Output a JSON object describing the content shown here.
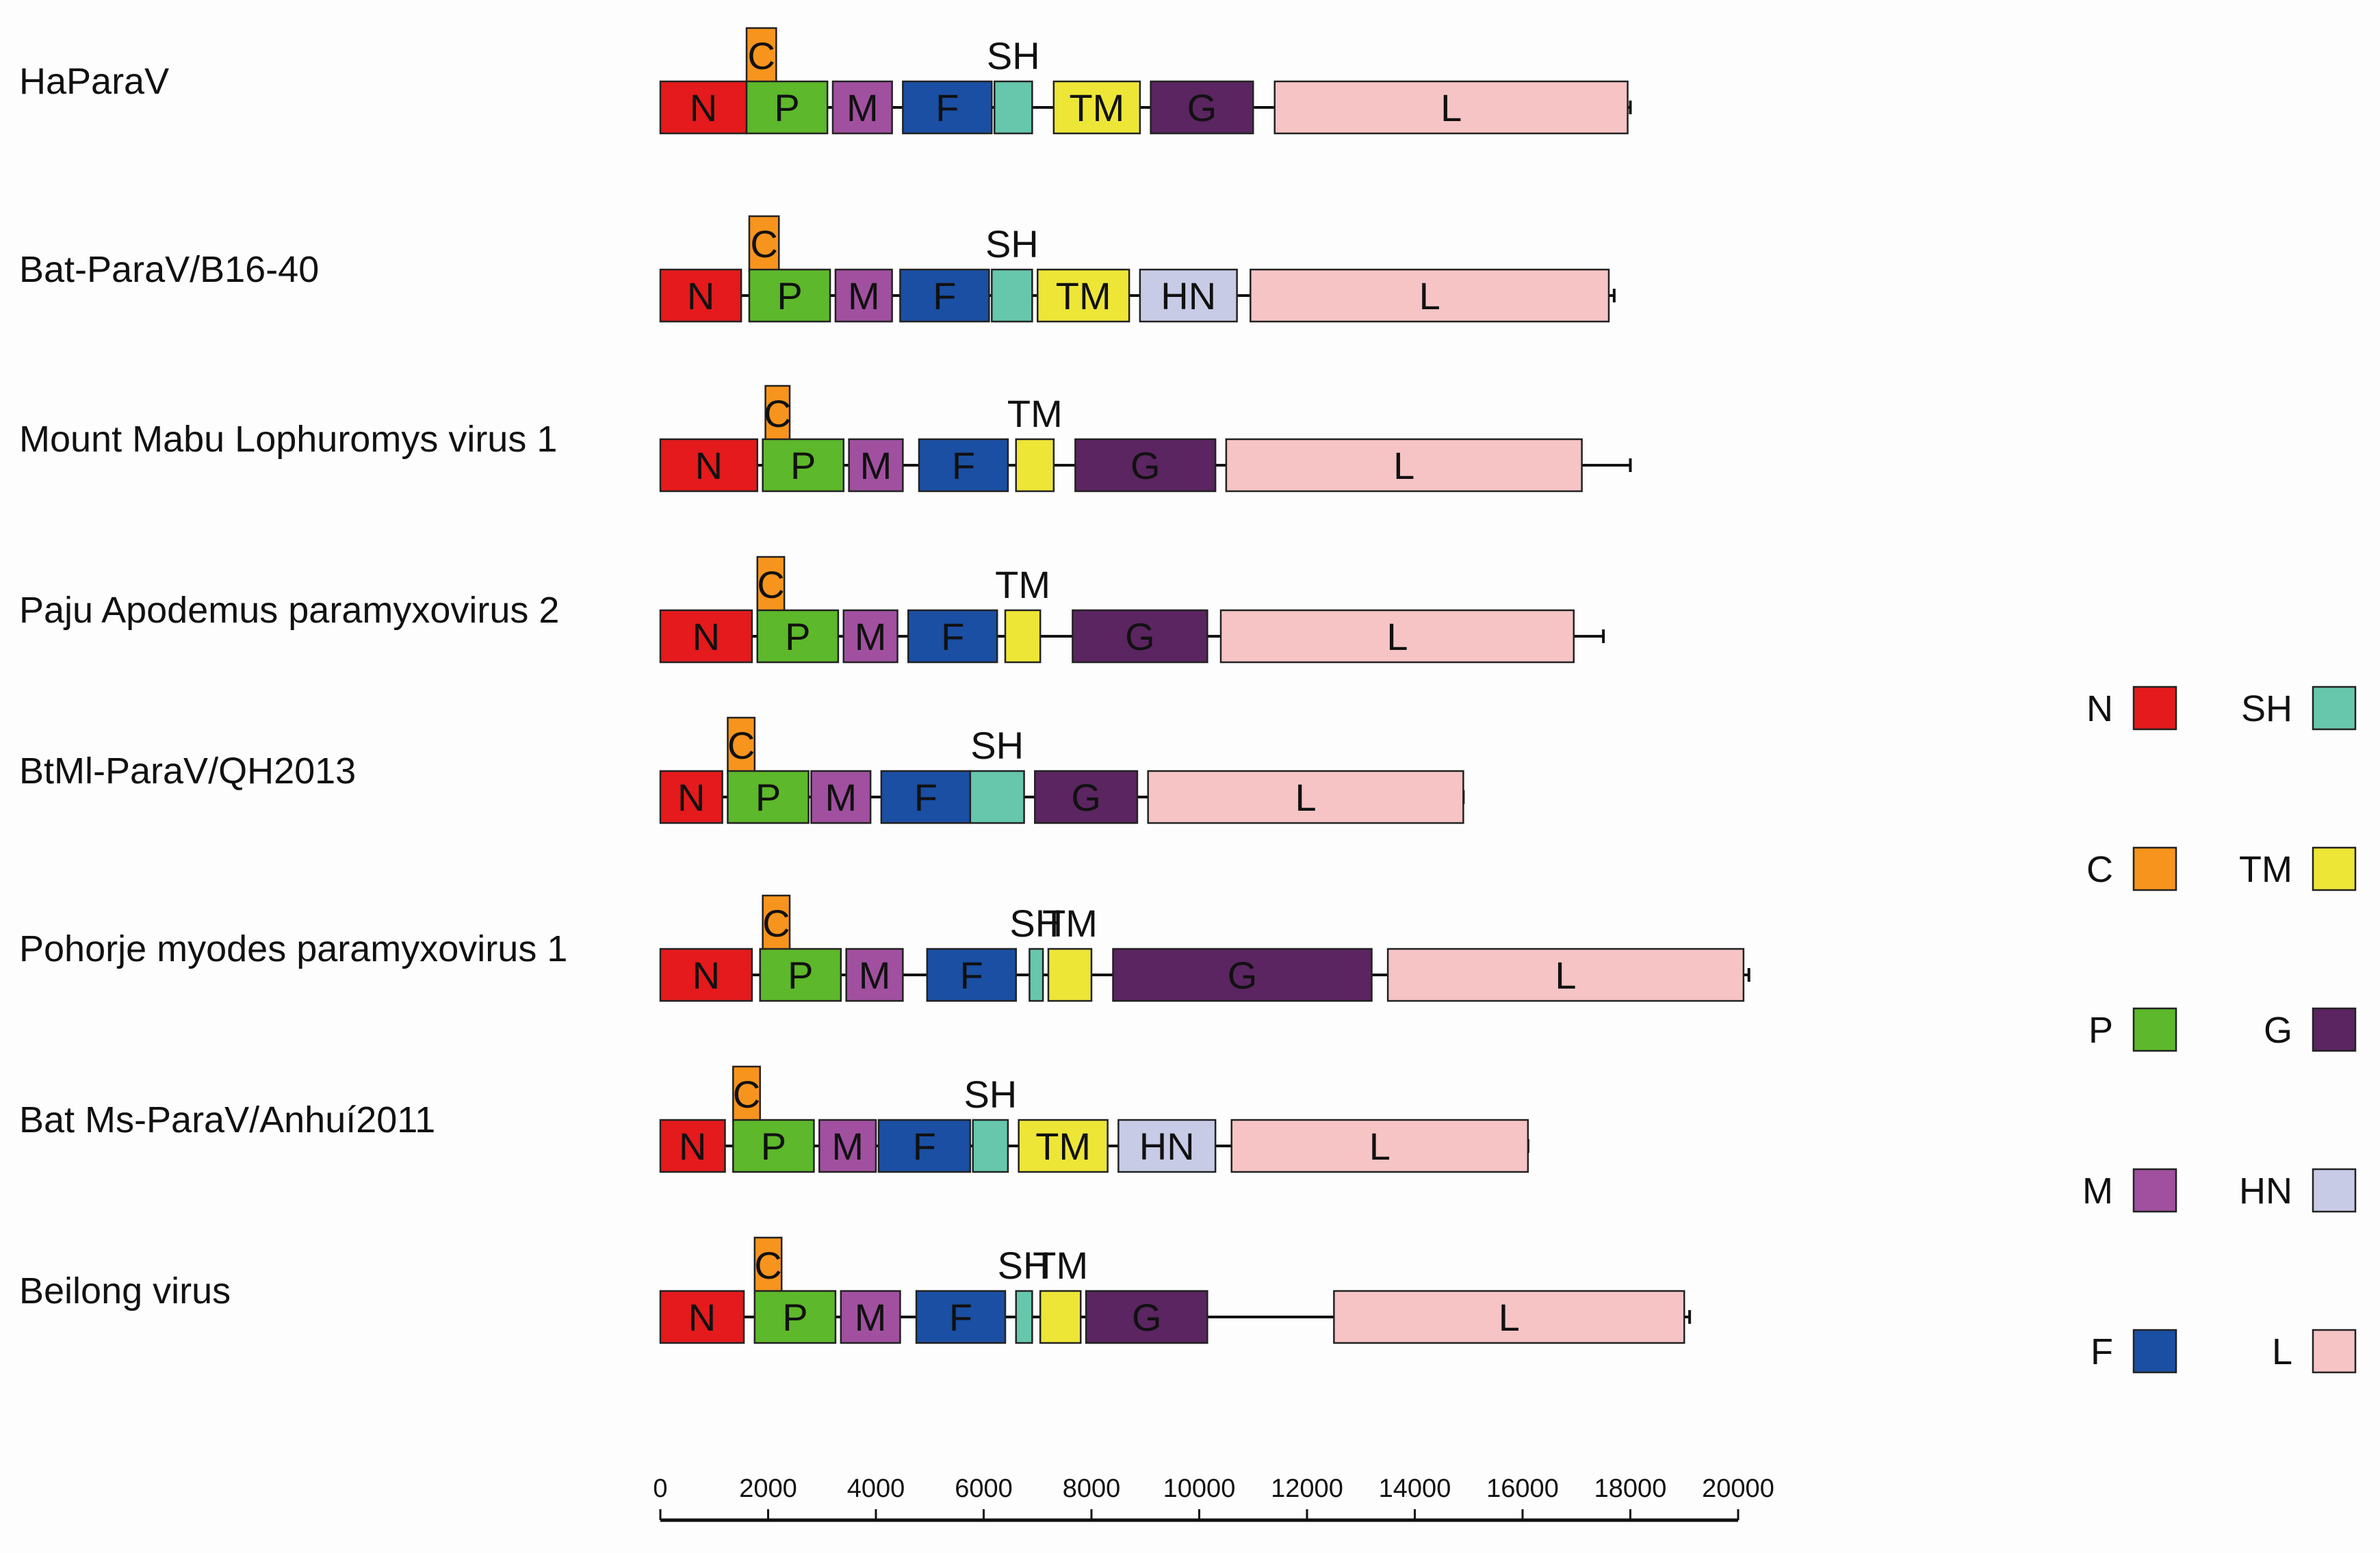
{
  "genes": {
    "N": {
      "label": "N",
      "color": "#e41a1c"
    },
    "C": {
      "label": "C",
      "color": "#f7941d"
    },
    "P": {
      "label": "P",
      "color": "#5db82b"
    },
    "M": {
      "label": "M",
      "color": "#a0509f"
    },
    "F": {
      "label": "F",
      "color": "#1a4fa3"
    },
    "SH": {
      "label": "SH",
      "color": "#66c7ac"
    },
    "TM": {
      "label": "TM",
      "color": "#ede637"
    },
    "G": {
      "label": "G",
      "color": "#5a2560"
    },
    "HN": {
      "label": "HN",
      "color": "#c8cbe6"
    },
    "L": {
      "label": "L",
      "color": "#f6c4c4"
    }
  },
  "legend": {
    "left": [
      "N",
      "C",
      "P",
      "M",
      "F"
    ],
    "right": [
      "SH",
      "TM",
      "G",
      "HN",
      "L"
    ]
  },
  "axis": {
    "min": 0,
    "max": 20000,
    "ticks": [
      0,
      2000,
      4000,
      6000,
      8000,
      10000,
      12000,
      14000,
      16000,
      18000,
      20000
    ]
  },
  "viruses": [
    {
      "name": "HaParaV",
      "highlight": "#e41a1c",
      "line": [
        0,
        18000
      ],
      "genes": [
        {
          "g": "N",
          "s": 0,
          "e": 1600
        },
        {
          "g": "C",
          "s": 1600,
          "e": 2150,
          "top": true
        },
        {
          "g": "P",
          "s": 1600,
          "e": 3100
        },
        {
          "g": "M",
          "s": 3200,
          "e": 4300
        },
        {
          "g": "F",
          "s": 4500,
          "e": 6150
        },
        {
          "g": "SH",
          "s": 6200,
          "e": 6900,
          "above": true
        },
        {
          "g": "TM",
          "s": 7300,
          "e": 8900
        },
        {
          "g": "G",
          "s": 9100,
          "e": 11000
        },
        {
          "g": "L",
          "s": 11400,
          "e": 17950
        }
      ]
    },
    {
      "name": "Bat-ParaV/B16-40",
      "line": [
        0,
        17700
      ],
      "genes": [
        {
          "g": "N",
          "s": 0,
          "e": 1500
        },
        {
          "g": "C",
          "s": 1650,
          "e": 2200,
          "top": true
        },
        {
          "g": "P",
          "s": 1650,
          "e": 3150
        },
        {
          "g": "M",
          "s": 3250,
          "e": 4300
        },
        {
          "g": "F",
          "s": 4450,
          "e": 6100
        },
        {
          "g": "SH",
          "s": 6150,
          "e": 6900,
          "above": true
        },
        {
          "g": "TM",
          "s": 7000,
          "e": 8700
        },
        {
          "g": "HN",
          "s": 8900,
          "e": 10700
        },
        {
          "g": "L",
          "s": 10950,
          "e": 17600
        }
      ]
    },
    {
      "name": "Mount Mabu Lophuromys virus 1",
      "line": [
        0,
        18000
      ],
      "genes": [
        {
          "g": "N",
          "s": 0,
          "e": 1800
        },
        {
          "g": "C",
          "s": 1950,
          "e": 2400,
          "top": true
        },
        {
          "g": "P",
          "s": 1900,
          "e": 3400
        },
        {
          "g": "M",
          "s": 3500,
          "e": 4500
        },
        {
          "g": "F",
          "s": 4800,
          "e": 6450
        },
        {
          "g": "TM",
          "s": 6600,
          "e": 7300,
          "above": true
        },
        {
          "g": "G",
          "s": 7700,
          "e": 10300
        },
        {
          "g": "L",
          "s": 10500,
          "e": 17100
        }
      ]
    },
    {
      "name": "Paju Apodemus paramyxovirus 2",
      "line": [
        0,
        17500
      ],
      "genes": [
        {
          "g": "N",
          "s": 0,
          "e": 1700
        },
        {
          "g": "C",
          "s": 1800,
          "e": 2300,
          "top": true
        },
        {
          "g": "P",
          "s": 1800,
          "e": 3300
        },
        {
          "g": "M",
          "s": 3400,
          "e": 4400
        },
        {
          "g": "F",
          "s": 4600,
          "e": 6250
        },
        {
          "g": "TM",
          "s": 6400,
          "e": 7050,
          "above": true
        },
        {
          "g": "G",
          "s": 7650,
          "e": 10150
        },
        {
          "g": "L",
          "s": 10400,
          "e": 16950
        }
      ]
    },
    {
      "name": "BtMl-ParaV/QH2013",
      "line": [
        0,
        14900
      ],
      "genes": [
        {
          "g": "N",
          "s": 0,
          "e": 1150
        },
        {
          "g": "C",
          "s": 1250,
          "e": 1750,
          "top": true
        },
        {
          "g": "P",
          "s": 1250,
          "e": 2750
        },
        {
          "g": "M",
          "s": 2800,
          "e": 3900
        },
        {
          "g": "F",
          "s": 4100,
          "e": 5750
        },
        {
          "g": "SH",
          "s": 5750,
          "e": 6750,
          "above": true
        },
        {
          "g": "G",
          "s": 6950,
          "e": 8850
        },
        {
          "g": "L",
          "s": 9050,
          "e": 14900
        }
      ]
    },
    {
      "name": "Pohorje myodes paramyxovirus 1",
      "line": [
        0,
        20200
      ],
      "genes": [
        {
          "g": "N",
          "s": 0,
          "e": 1700
        },
        {
          "g": "C",
          "s": 1900,
          "e": 2400,
          "top": true
        },
        {
          "g": "P",
          "s": 1850,
          "e": 3350
        },
        {
          "g": "M",
          "s": 3450,
          "e": 4500
        },
        {
          "g": "F",
          "s": 4950,
          "e": 6600
        },
        {
          "g": "SH",
          "s": 6850,
          "e": 7100,
          "above": true
        },
        {
          "g": "TM",
          "s": 7200,
          "e": 8000,
          "above": true
        },
        {
          "g": "G",
          "s": 8400,
          "e": 13200
        },
        {
          "g": "L",
          "s": 13500,
          "e": 20100
        }
      ]
    },
    {
      "name": "Bat Ms-ParaV/Anhuí2011",
      "line": [
        0,
        16100
      ],
      "genes": [
        {
          "g": "N",
          "s": 0,
          "e": 1200
        },
        {
          "g": "C",
          "s": 1350,
          "e": 1850,
          "top": true
        },
        {
          "g": "P",
          "s": 1350,
          "e": 2850
        },
        {
          "g": "M",
          "s": 2950,
          "e": 4000
        },
        {
          "g": "F",
          "s": 4050,
          "e": 5750
        },
        {
          "g": "SH",
          "s": 5800,
          "e": 6450,
          "above": true
        },
        {
          "g": "TM",
          "s": 6650,
          "e": 8300
        },
        {
          "g": "HN",
          "s": 8500,
          "e": 10300
        },
        {
          "g": "L",
          "s": 10600,
          "e": 16100
        }
      ]
    },
    {
      "name": "Beilong virus",
      "line": [
        0,
        19100
      ],
      "genes": [
        {
          "g": "N",
          "s": 0,
          "e": 1550
        },
        {
          "g": "C",
          "s": 1750,
          "e": 2250,
          "top": true
        },
        {
          "g": "P",
          "s": 1750,
          "e": 3250
        },
        {
          "g": "M",
          "s": 3350,
          "e": 4450
        },
        {
          "g": "F",
          "s": 4750,
          "e": 6400
        },
        {
          "g": "SH",
          "s": 6600,
          "e": 6900,
          "above": true
        },
        {
          "g": "TM",
          "s": 7050,
          "e": 7800,
          "above": true
        },
        {
          "g": "G",
          "s": 7900,
          "e": 10150
        },
        {
          "g": "L",
          "s": 12500,
          "e": 19000
        }
      ]
    }
  ]
}
